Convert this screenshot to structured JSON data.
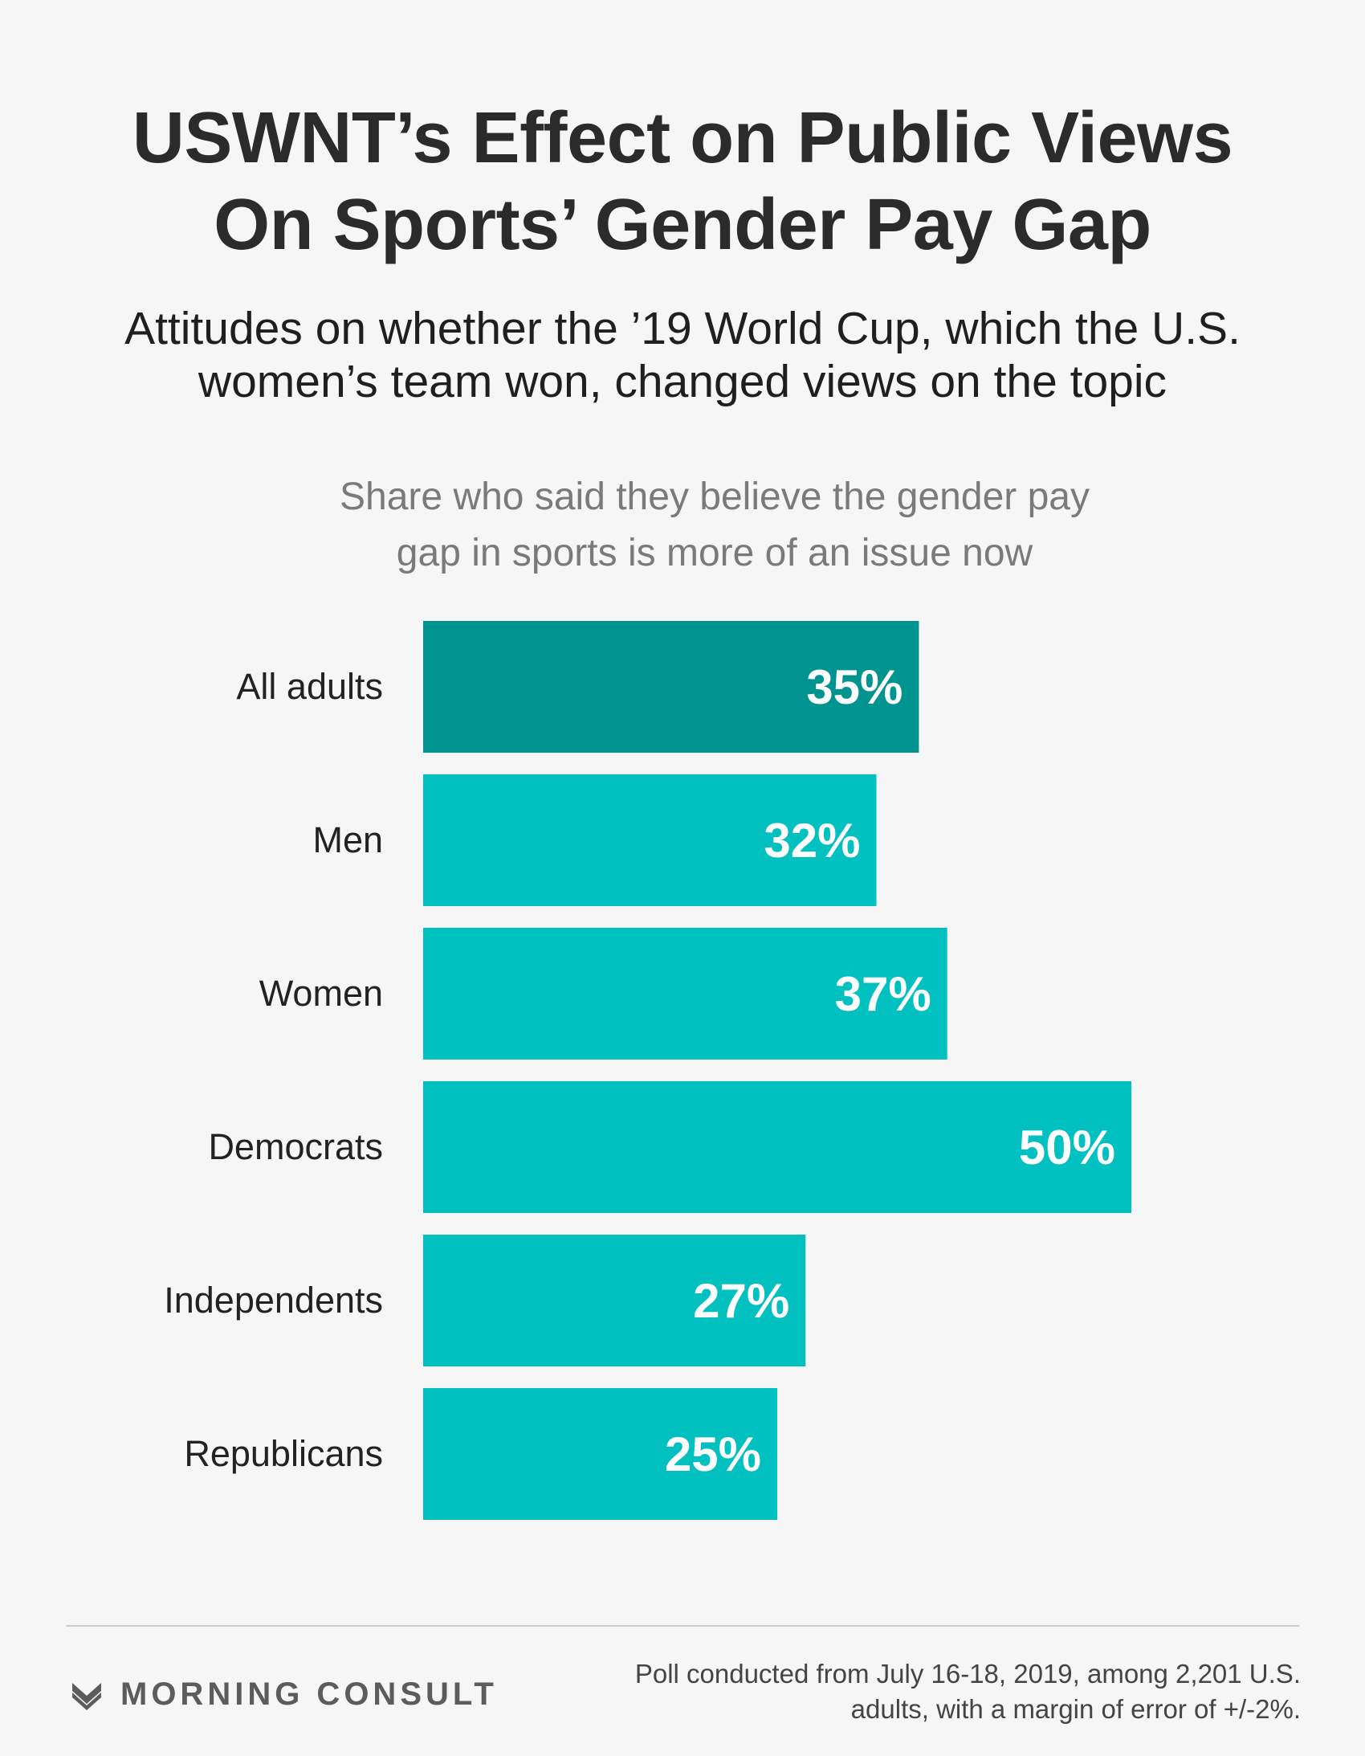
{
  "title_lines": [
    "USWNT’s Effect on Public Views",
    "On Sports’ Gender Pay Gap"
  ],
  "subtitle_lines": [
    "Attitudes on whether the ’19 World Cup, which the U.S.",
    "women’s team won, changed views on the topic"
  ],
  "chart_data": {
    "type": "bar",
    "orientation": "horizontal",
    "title_lines": [
      "Share who said they believe the gender pay",
      "gap in sports is more of an issue now"
    ],
    "categories": [
      "All adults",
      "Men",
      "Women",
      "Democrats",
      "Independents",
      "Republicans"
    ],
    "values": [
      35,
      32,
      37,
      50,
      27,
      25
    ],
    "value_labels": [
      "35%",
      "32%",
      "37%",
      "50%",
      "27%",
      "25%"
    ],
    "unit": "%",
    "colors": [
      "#009490",
      "#00c0c0",
      "#00c0c0",
      "#00c0c0",
      "#00c0c0",
      "#00c0c0"
    ],
    "grid": false,
    "legend": "none"
  },
  "footer": {
    "logo_text": "MORNING CONSULT",
    "logo_icon": "morning-consult-chevron-icon",
    "note_lines": [
      "Poll conducted from July 16-18, 2019, among 2,201 U.S.",
      "adults, with a margin of error of +/-2%."
    ]
  }
}
